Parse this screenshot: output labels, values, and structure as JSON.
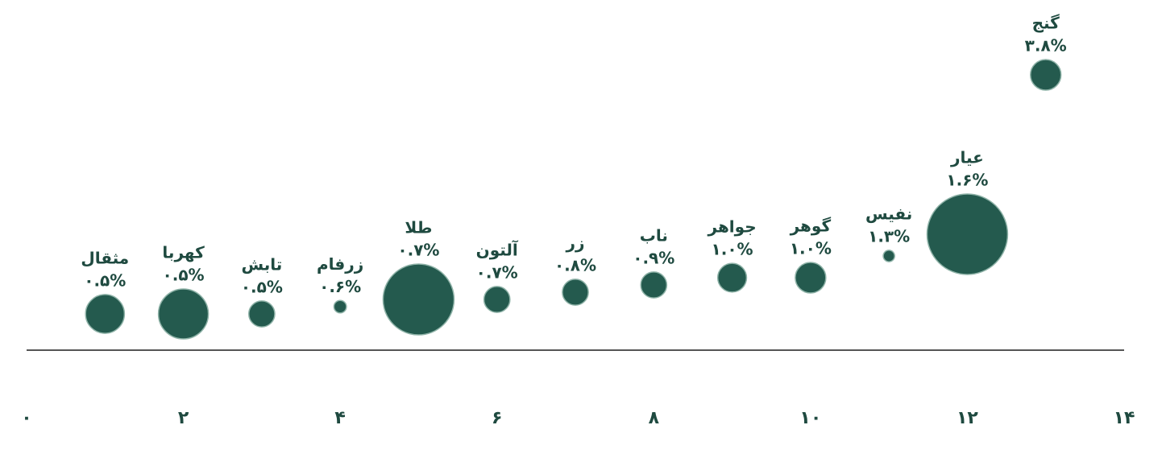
{
  "chart_data": {
    "type": "bubble",
    "labels": [
      "مثقال",
      "کهربا",
      "تابش",
      "زرفام",
      "طلا",
      "آلتون",
      "زر",
      "ناب",
      "جواهر",
      "گوهر",
      "نفیس",
      "عیار",
      "گنج"
    ],
    "x": [
      1,
      2,
      3,
      4,
      5,
      6,
      7,
      8,
      9,
      10,
      11,
      12,
      13
    ],
    "values": [
      0.5,
      0.5,
      0.5,
      0.6,
      0.7,
      0.7,
      0.8,
      0.9,
      1.0,
      1.0,
      1.3,
      1.6,
      3.8
    ],
    "value_labels": [
      "۰.۵%",
      "۰.۵%",
      "۰.۵%",
      "۰.۶%",
      "۰.۷%",
      "۰.۷%",
      "۰.۸%",
      "۰.۹%",
      "۱.۰%",
      "۱.۰%",
      "۱.۳%",
      "۱.۶%",
      "۳.۸%"
    ],
    "sizes": [
      5.8,
      9.6,
      2.6,
      0.6,
      19.4,
      2.6,
      2.6,
      2.6,
      3.2,
      3.6,
      0.5,
      25,
      3.6
    ],
    "color": "#245a4e",
    "xlim": [
      0,
      14
    ],
    "xticks": [
      {
        "value": 0,
        "label": "۰"
      },
      {
        "value": 2,
        "label": "۲"
      },
      {
        "value": 4,
        "label": "۴"
      },
      {
        "value": 6,
        "label": "۶"
      },
      {
        "value": 8,
        "label": "۸"
      },
      {
        "value": 10,
        "label": "۱۰"
      },
      {
        "value": 12,
        "label": "۱۲"
      },
      {
        "value": 14,
        "label": "۱۴"
      }
    ],
    "ylim": [
      0,
      4.8
    ]
  }
}
